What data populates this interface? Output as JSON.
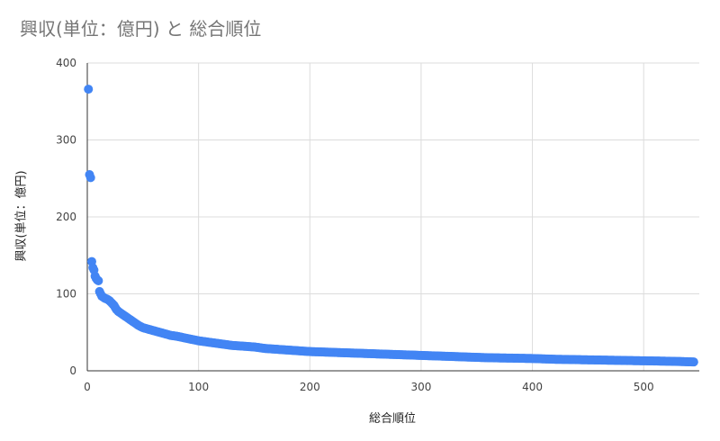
{
  "chart_data": {
    "type": "scatter",
    "title": "興収(単位：億円) と 総合順位",
    "xlabel": "総合順位",
    "ylabel": "興収(単位：億円)",
    "xlim": [
      0,
      550
    ],
    "ylim": [
      0,
      400
    ],
    "xticks": [
      0,
      100,
      200,
      300,
      400,
      500
    ],
    "yticks": [
      0,
      100,
      200,
      300,
      400
    ],
    "xtick_labels": [
      "0",
      "100",
      "200",
      "300",
      "400",
      "500"
    ],
    "ytick_labels": [
      "0",
      "100",
      "200",
      "300",
      "400"
    ],
    "grid": true,
    "legend": "none",
    "marker_color": "#4285f4",
    "points": [
      [
        1,
        366
      ],
      [
        2,
        255
      ],
      [
        3,
        251
      ],
      [
        4,
        142
      ],
      [
        5,
        134
      ],
      [
        6,
        131
      ],
      [
        7,
        123
      ],
      [
        8,
        120
      ],
      [
        9,
        118
      ],
      [
        10,
        117
      ],
      [
        11,
        103
      ],
      [
        12,
        100
      ],
      [
        13,
        97
      ],
      [
        14,
        96
      ],
      [
        16,
        94
      ],
      [
        18,
        93
      ],
      [
        20,
        91
      ],
      [
        22,
        88
      ],
      [
        24,
        85
      ],
      [
        26,
        80
      ],
      [
        28,
        77
      ],
      [
        30,
        75
      ],
      [
        33,
        72
      ],
      [
        36,
        69
      ],
      [
        40,
        65
      ],
      [
        43,
        62
      ],
      [
        46,
        59
      ],
      [
        50,
        56
      ],
      [
        55,
        54
      ],
      [
        60,
        52
      ],
      [
        65,
        50
      ],
      [
        70,
        48
      ],
      [
        75,
        46
      ],
      [
        80,
        45
      ],
      [
        90,
        42
      ],
      [
        100,
        39
      ],
      [
        110,
        37
      ],
      [
        120,
        35
      ],
      [
        130,
        33
      ],
      [
        140,
        32
      ],
      [
        150,
        31
      ],
      [
        160,
        29
      ],
      [
        170,
        28
      ],
      [
        180,
        27
      ],
      [
        190,
        26
      ],
      [
        200,
        25
      ],
      [
        220,
        24
      ],
      [
        240,
        23
      ],
      [
        260,
        22
      ],
      [
        280,
        21
      ],
      [
        300,
        20
      ],
      [
        320,
        19
      ],
      [
        340,
        18
      ],
      [
        360,
        17
      ],
      [
        380,
        16.5
      ],
      [
        400,
        16
      ],
      [
        420,
        15
      ],
      [
        440,
        14.5
      ],
      [
        460,
        14
      ],
      [
        480,
        13.5
      ],
      [
        500,
        13
      ],
      [
        520,
        12.5
      ],
      [
        535,
        12
      ],
      [
        545,
        11.5
      ]
    ]
  }
}
